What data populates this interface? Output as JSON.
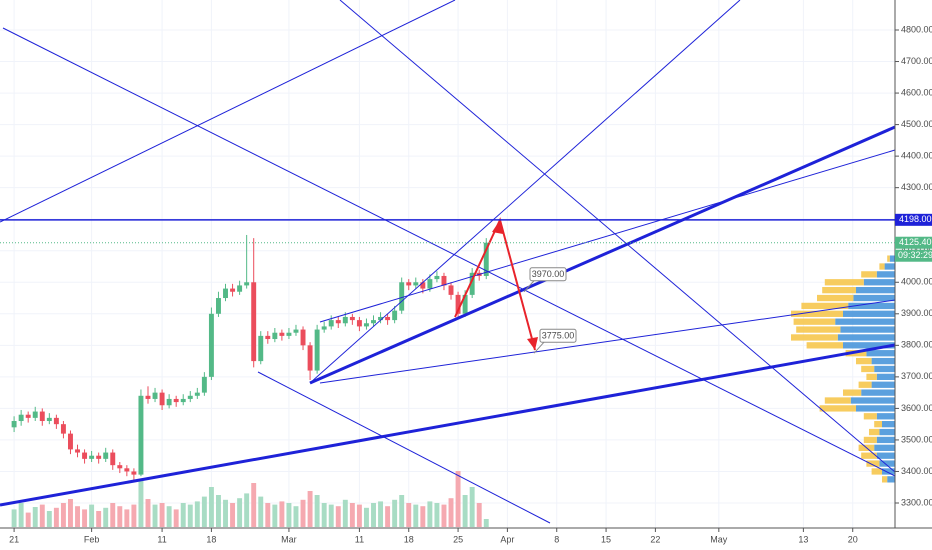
{
  "chart_data": {
    "type": "candlestick",
    "xlim": [
      -2,
      125
    ],
    "ylim": [
      3300,
      4800
    ],
    "xticks": [
      {
        "value": 0,
        "label": "21"
      },
      {
        "value": 11,
        "label": "Feb"
      },
      {
        "value": 21,
        "label": "11"
      },
      {
        "value": 28,
        "label": "18"
      },
      {
        "value": 39,
        "label": "Mar"
      },
      {
        "value": 49,
        "label": "11"
      },
      {
        "value": 56,
        "label": "18"
      },
      {
        "value": 63,
        "label": "25"
      },
      {
        "value": 70,
        "label": "Apr"
      },
      {
        "value": 77,
        "label": "8"
      },
      {
        "value": 84,
        "label": "15"
      },
      {
        "value": 91,
        "label": "22"
      },
      {
        "value": 100,
        "label": "May"
      },
      {
        "value": 112,
        "label": "13"
      },
      {
        "value": 119,
        "label": "20"
      }
    ],
    "yticks": [
      {
        "value": 3300,
        "label": "3300.00"
      },
      {
        "value": 3400,
        "label": "3400.00"
      },
      {
        "value": 3500,
        "label": "3500.00"
      },
      {
        "value": 3600,
        "label": "3600.00"
      },
      {
        "value": 3700,
        "label": "3700.00"
      },
      {
        "value": 3800,
        "label": "3800.00"
      },
      {
        "value": 3900,
        "label": "3900.00"
      },
      {
        "value": 4000,
        "label": "4000.00"
      },
      {
        "value": 4100,
        "label": "4100.00"
      },
      {
        "value": 4200,
        "label": "4200.00"
      },
      {
        "value": 4300,
        "label": "4300.00"
      },
      {
        "value": 4400,
        "label": "4400.00"
      },
      {
        "value": 4500,
        "label": "4500.00"
      },
      {
        "value": 4600,
        "label": "4600.00"
      },
      {
        "value": 4700,
        "label": "4700.00"
      },
      {
        "value": 4800,
        "label": "4800.00"
      }
    ],
    "grid": true,
    "up_color": "#53b987",
    "down_color": "#eb4d5c",
    "volume_up_color": "#a8dcc4",
    "volume_down_color": "#f5a9b0",
    "x": [
      0,
      1,
      2,
      3,
      4,
      5,
      6,
      7,
      8,
      9,
      10,
      11,
      12,
      13,
      14,
      15,
      16,
      17,
      18,
      19,
      20,
      21,
      22,
      23,
      24,
      25,
      26,
      27,
      28,
      29,
      30,
      31,
      32,
      33,
      34,
      35,
      36,
      37,
      38,
      39,
      40,
      41,
      42,
      43,
      44,
      45,
      46,
      47,
      48,
      49,
      50,
      51,
      52,
      53,
      54,
      55,
      56,
      57,
      58,
      59,
      60,
      61,
      62,
      63,
      64,
      65,
      66,
      67
    ],
    "candles": [
      [
        3540,
        3575,
        3525,
        3560
      ],
      [
        3560,
        3595,
        3545,
        3580
      ],
      [
        3580,
        3590,
        3555,
        3570
      ],
      [
        3570,
        3605,
        3560,
        3590
      ],
      [
        3590,
        3600,
        3545,
        3560
      ],
      [
        3560,
        3585,
        3550,
        3570
      ],
      [
        3570,
        3580,
        3535,
        3550
      ],
      [
        3550,
        3560,
        3505,
        3520
      ],
      [
        3520,
        3530,
        3455,
        3470
      ],
      [
        3470,
        3485,
        3445,
        3460
      ],
      [
        3460,
        3470,
        3425,
        3440
      ],
      [
        3440,
        3465,
        3430,
        3450
      ],
      [
        3450,
        3460,
        3425,
        3440
      ],
      [
        3440,
        3475,
        3430,
        3460
      ],
      [
        3460,
        3470,
        3405,
        3420
      ],
      [
        3420,
        3430,
        3395,
        3410
      ],
      [
        3410,
        3420,
        3385,
        3400
      ],
      [
        3400,
        3410,
        3370,
        3390
      ],
      [
        3390,
        3660,
        3385,
        3640
      ],
      [
        3640,
        3670,
        3615,
        3630
      ],
      [
        3630,
        3665,
        3620,
        3650
      ],
      [
        3650,
        3660,
        3595,
        3610
      ],
      [
        3610,
        3645,
        3600,
        3630
      ],
      [
        3630,
        3640,
        3605,
        3620
      ],
      [
        3620,
        3645,
        3610,
        3630
      ],
      [
        3630,
        3655,
        3620,
        3640
      ],
      [
        3640,
        3665,
        3630,
        3650
      ],
      [
        3650,
        3715,
        3640,
        3700
      ],
      [
        3700,
        3920,
        3690,
        3900
      ],
      [
        3900,
        3970,
        3890,
        3950
      ],
      [
        3950,
        3995,
        3940,
        3980
      ],
      [
        3980,
        3995,
        3955,
        3970
      ],
      [
        3970,
        4005,
        3960,
        3990
      ],
      [
        3990,
        4150,
        3980,
        4000
      ],
      [
        4000,
        4140,
        3730,
        3750
      ],
      [
        3750,
        3845,
        3740,
        3830
      ],
      [
        3830,
        3845,
        3805,
        3820
      ],
      [
        3820,
        3855,
        3810,
        3840
      ],
      [
        3840,
        3850,
        3815,
        3830
      ],
      [
        3830,
        3855,
        3820,
        3840
      ],
      [
        3840,
        3865,
        3830,
        3850
      ],
      [
        3850,
        3860,
        3785,
        3800
      ],
      [
        3800,
        3810,
        3690,
        3720
      ],
      [
        3720,
        3865,
        3710,
        3850
      ],
      [
        3850,
        3875,
        3840,
        3860
      ],
      [
        3860,
        3895,
        3850,
        3880
      ],
      [
        3880,
        3890,
        3855,
        3870
      ],
      [
        3870,
        3905,
        3860,
        3890
      ],
      [
        3890,
        3900,
        3865,
        3880
      ],
      [
        3880,
        3890,
        3845,
        3860
      ],
      [
        3860,
        3885,
        3850,
        3870
      ],
      [
        3870,
        3895,
        3860,
        3880
      ],
      [
        3880,
        3905,
        3870,
        3890
      ],
      [
        3890,
        3900,
        3865,
        3880
      ],
      [
        3880,
        3925,
        3870,
        3910
      ],
      [
        3910,
        4015,
        3900,
        4000
      ],
      [
        4000,
        4010,
        3975,
        3990
      ],
      [
        3990,
        4015,
        3980,
        4000
      ],
      [
        4000,
        4010,
        3965,
        3980
      ],
      [
        3980,
        4025,
        3970,
        4010
      ],
      [
        4010,
        4035,
        4000,
        4020
      ],
      [
        4020,
        4030,
        3975,
        3990
      ],
      [
        3990,
        4000,
        3945,
        3960
      ],
      [
        3960,
        3970,
        3885,
        3900
      ],
      [
        3900,
        3975,
        3890,
        3960
      ],
      [
        3960,
        4045,
        3950,
        4030
      ],
      [
        4030,
        4040,
        4005,
        4020
      ],
      [
        4020,
        4140,
        4010,
        4125.4
      ]
    ],
    "volume": [
      22,
      30,
      18,
      25,
      28,
      20,
      24,
      30,
      35,
      26,
      22,
      28,
      20,
      24,
      30,
      26,
      22,
      28,
      60,
      35,
      28,
      30,
      26,
      22,
      30,
      28,
      32,
      38,
      50,
      40,
      34,
      30,
      36,
      42,
      55,
      38,
      30,
      28,
      32,
      30,
      26,
      34,
      45,
      40,
      30,
      28,
      26,
      34,
      30,
      28,
      24,
      30,
      32,
      26,
      34,
      40,
      30,
      28,
      26,
      32,
      30,
      28,
      36,
      70,
      40,
      50,
      30,
      10
    ],
    "vlim": [
      0,
      100
    ],
    "volume_profile": {
      "prices": [
        3375,
        3400,
        3425,
        3450,
        3475,
        3500,
        3525,
        3550,
        3575,
        3600,
        3625,
        3650,
        3675,
        3700,
        3725,
        3750,
        3775,
        3800,
        3825,
        3850,
        3875,
        3900,
        3925,
        3950,
        3975,
        4000,
        4025,
        4050,
        4075
      ],
      "buy": [
        6,
        10,
        12,
        14,
        16,
        14,
        12,
        10,
        14,
        30,
        34,
        26,
        18,
        14,
        16,
        18,
        22,
        40,
        44,
        42,
        46,
        40,
        36,
        32,
        30,
        24,
        14,
        8,
        4
      ],
      "sell": [
        4,
        8,
        10,
        12,
        12,
        10,
        8,
        6,
        10,
        28,
        20,
        14,
        10,
        8,
        10,
        12,
        16,
        28,
        36,
        34,
        32,
        40,
        36,
        28,
        26,
        30,
        12,
        4,
        2
      ],
      "lim": [
        0,
        100
      ],
      "buy_color": "#3e8fd8",
      "sell_color": "#f6c343"
    },
    "price_labels": [
      {
        "value": 4198,
        "label": "4198.00",
        "color": "#1e22d8"
      },
      {
        "value": 4125.4,
        "label": "4125.40",
        "color": "#53b987"
      }
    ],
    "countdown": "09:32:29",
    "callouts": [
      {
        "value": 3970,
        "label": "3970.00"
      },
      {
        "value": 3775,
        "label": "3775.00"
      }
    ]
  }
}
